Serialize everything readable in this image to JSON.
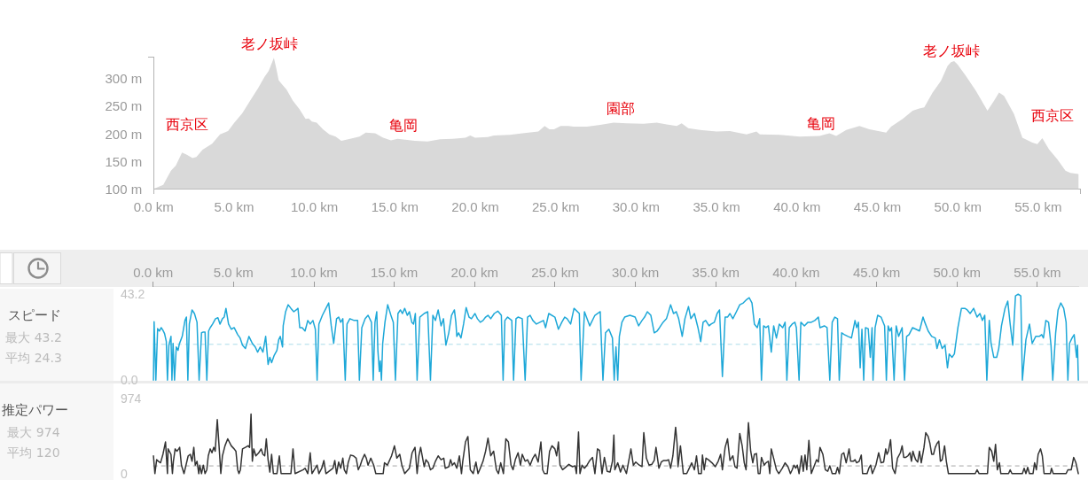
{
  "chart_data": [
    {
      "type": "area",
      "color": "#d9d9d9",
      "x": [
        0,
        0.6,
        1.08,
        1.38,
        1.77,
        2.07,
        2.42,
        2.66,
        3.05,
        3.64,
        4.13,
        4.63,
        5.02,
        5.51,
        6,
        6.5,
        6.89,
        7.15,
        7.28,
        7.48,
        7.62,
        7.78,
        8.01,
        8.27,
        8.66,
        9.06,
        9.45,
        9.65,
        9.84,
        10.14,
        10.53,
        10.93,
        11.32,
        11.67,
        12.1,
        12.8,
        13.19,
        13.78,
        14.27,
        14.76,
        15.16,
        15.65,
        16.24,
        17.03,
        17.81,
        18.6,
        19.39,
        19.69,
        19.98,
        20.77,
        21.16,
        22.15,
        22.93,
        23.92,
        24.31,
        24.61,
        24.9,
        25.3,
        25.79,
        26.12,
        26.94,
        27.77,
        28.6,
        29.42,
        30.45,
        31.28,
        31.9,
        32.52,
        32.83,
        33.24,
        33.97,
        35,
        35.83,
        36.86,
        37.48,
        37.69,
        38.93,
        40.17,
        41.4,
        42.02,
        42.44,
        43.06,
        43.88,
        44.5,
        45.54,
        45.85,
        46.57,
        47.19,
        47.6,
        47.91,
        48.43,
        48.95,
        49.36,
        49.57,
        49.77,
        49.98,
        50.5,
        51.12,
        51.84,
        52.25,
        52.56,
        52.87,
        53.49,
        54.01,
        54.63,
        54.94,
        55.25,
        55.66,
        56.18,
        56.69,
        57,
        57.5
      ],
      "values": [
        100,
        107,
        133,
        142,
        166,
        162,
        156,
        158,
        171,
        182,
        199,
        205,
        220,
        237,
        260,
        283,
        303,
        314,
        323,
        338,
        320,
        297,
        289,
        280,
        260,
        245,
        227,
        228,
        222,
        220,
        208,
        199,
        195,
        187,
        190,
        195,
        202,
        201,
        193,
        188,
        191,
        189,
        187,
        186,
        190,
        191,
        193,
        197,
        193,
        194,
        197,
        198,
        201,
        204,
        214,
        208,
        208,
        214,
        214,
        213,
        213,
        216,
        220,
        219,
        218,
        220,
        217,
        214,
        219,
        210,
        207,
        204,
        205,
        199,
        204,
        199,
        198,
        195,
        196,
        201,
        196,
        207,
        214,
        208,
        202,
        213,
        227,
        242,
        246,
        248,
        275,
        296,
        323,
        330,
        332,
        326,
        305,
        278,
        242,
        260,
        275,
        269,
        236,
        193,
        184,
        181,
        192,
        172,
        154,
        133,
        129,
        127
      ],
      "xlim": [
        0,
        57.6
      ],
      "ylim": [
        100,
        340
      ],
      "xticks": [
        {
          "value": 0,
          "label": "0.0 km"
        },
        {
          "value": 5,
          "label": "5.0 km"
        },
        {
          "value": 10,
          "label": "10.0 km"
        },
        {
          "value": 15,
          "label": "15.0 km"
        },
        {
          "value": 20,
          "label": "20.0 km"
        },
        {
          "value": 25,
          "label": "25.0 km"
        },
        {
          "value": 30,
          "label": "30.0 km"
        },
        {
          "value": 35,
          "label": "35.0 km"
        },
        {
          "value": 40,
          "label": "40.0 km"
        },
        {
          "value": 45,
          "label": "45.0 km"
        },
        {
          "value": 50,
          "label": "50.0 km"
        },
        {
          "value": 55,
          "label": "55.0 km"
        }
      ],
      "yticks": [
        {
          "value": 100,
          "label": "100 m"
        },
        {
          "value": 150,
          "label": "150 m"
        },
        {
          "value": 200,
          "label": "200 m"
        },
        {
          "value": 250,
          "label": "250 m"
        },
        {
          "value": 300,
          "label": "300 m"
        }
      ],
      "annotations": [
        "西京区",
        "老ノ坂峠",
        "亀岡",
        "園部",
        "亀岡",
        "老ノ坂峠",
        "西京区"
      ]
    },
    {
      "type": "line",
      "color": "#1ea8d8",
      "ylabel": "スピード",
      "annotations": [
        "最大 43.2",
        "平均 24.3"
      ],
      "x": [
        0.02,
        0.06,
        0.17,
        0.28,
        0.39,
        0.5,
        0.6,
        0.71,
        0.82,
        0.89,
        0.98,
        1.11,
        1.17,
        1.24,
        1.33,
        1.44,
        1.55,
        1.63,
        1.81,
        1.98,
        2.07,
        2.16,
        2.25,
        2.42,
        2.57,
        2.73,
        2.86,
        3.01,
        3.12,
        3.23,
        3.34,
        3.45,
        3.55,
        3.7,
        3.88,
        4.03,
        4.16,
        4.31,
        4.42,
        4.53,
        4.69,
        4.86,
        5.04,
        5.26,
        5.41,
        5.56,
        5.74,
        5.96,
        6.17,
        6.35,
        6.5,
        6.66,
        6.83,
        7,
        7.15,
        7.26,
        7.37,
        7.52,
        7.7,
        7.81,
        7.91,
        8.05,
        8.09,
        8.24,
        8.4,
        8.57,
        8.75,
        8.9,
        9.01,
        9.12,
        9.27,
        9.45,
        9.62,
        9.77,
        9.94,
        10.09,
        10.2,
        10.31,
        10.53,
        10.75,
        10.92,
        11.08,
        11.23,
        11.41,
        11.54,
        11.67,
        11.8,
        11.95,
        12.06,
        12.24,
        12.5,
        12.72,
        12.83,
        12.98,
        13.19,
        13.37,
        13.58,
        13.69,
        13.8,
        13.91,
        13.98,
        14.07,
        14.13,
        14.2,
        14.28,
        14.42,
        14.59,
        14.79,
        14.94,
        15.07,
        15.23,
        15.38,
        15.51,
        15.65,
        15.81,
        15.94,
        16.09,
        16.2,
        16.31,
        16.42,
        16.59,
        16.86,
        17.08,
        17.25,
        17.4,
        17.56,
        17.73,
        17.91,
        18.06,
        18.21,
        18.39,
        18.56,
        18.74,
        18.83,
        18.89,
        19,
        19.15,
        19.31,
        19.47,
        19.65,
        19.8,
        20.02,
        20.17,
        20.35,
        20.52,
        20.68,
        20.83,
        21,
        21.22,
        21.44,
        21.66,
        21.77,
        21.88,
        22.05,
        22.31,
        22.42,
        22.57,
        22.7,
        22.96,
        23.14,
        23.29,
        23.45,
        23.62,
        23.84,
        24.06,
        24.28,
        24.41,
        24.61,
        24.99,
        25.21,
        25.42,
        25.6,
        25.75,
        25.97,
        26.18,
        26.51,
        26.62,
        26.83,
        27.16,
        27.48,
        27.81,
        27.98,
        28.14,
        28.35,
        28.57,
        28.68,
        28.79,
        28.9,
        29,
        29.16,
        29.33,
        29.66,
        29.98,
        30.2,
        30.41,
        30.57,
        30.74,
        30.96,
        31.17,
        31.35,
        31.5,
        31.72,
        31.93,
        32.19,
        32.37,
        32.54,
        32.69,
        32.91,
        33.08,
        33.3,
        33.45,
        33.67,
        33.89,
        34.06,
        34.21,
        34.37,
        34.58,
        34.71,
        34.91,
        35.08,
        35.23,
        35.41,
        35.58,
        35.73,
        35.88,
        36.06,
        36.28,
        36.49,
        36.71,
        36.93,
        37.08,
        37.25,
        37.4,
        37.58,
        37.73,
        37.84,
        37.97,
        38.12,
        38.27,
        38.45,
        38.6,
        38.77,
        38.95,
        39.16,
        39.31,
        39.42,
        39.57,
        39.75,
        39.92,
        40.01,
        40.18,
        40.29,
        40.51,
        40.73,
        40.94,
        41.16,
        41.38,
        41.48,
        41.75,
        41.92,
        42.09,
        42.24,
        42.4,
        42.57,
        42.68,
        42.83,
        43,
        43.22,
        43.44,
        43.66,
        43.76,
        43.87,
        43.98,
        44.09,
        44.2,
        44.31,
        44.48,
        44.61,
        44.72,
        44.78,
        44.91,
        45.07,
        45.28,
        45.5,
        45.61,
        45.72,
        45.83,
        45.93,
        46.09,
        46.22,
        46.37,
        46.59,
        46.74,
        46.87,
        47.02,
        47.24,
        47.45,
        47.67,
        47.89,
        48,
        48.21,
        48.43,
        48.65,
        48.76,
        48.91,
        49.08,
        49.26,
        49.41,
        49.52,
        49.69,
        49.84,
        50.06,
        50.28,
        50.49,
        50.64,
        50.82,
        51.04,
        51.25,
        51.43,
        51.58,
        51.73,
        51.86,
        52.01,
        52.12,
        52.29,
        52.47,
        52.6,
        52.77,
        52.99,
        53.16,
        53.31,
        53.47,
        53.64,
        53.81,
        53.97,
        54.07,
        54.29,
        54.51,
        54.68,
        54.9,
        55.12,
        55.27,
        55.38,
        55.53,
        55.7,
        55.85,
        55.96,
        56.14,
        56.29,
        56.46,
        56.64,
        56.79,
        56.9,
        57,
        57.16,
        57.29,
        57.44,
        57.5,
        57.55
      ],
      "values": [
        0,
        29.4,
        0,
        25.9,
        24.7,
        26.4,
        25.2,
        23.4,
        19.4,
        0,
        17.6,
        22,
        0,
        18.5,
        0,
        16.7,
        15,
        18.2,
        22,
        30,
        31.7,
        0,
        28.2,
        35.3,
        33.5,
        29.1,
        0,
        23.8,
        24.2,
        24.2,
        0,
        24.7,
        26.4,
        28.2,
        30.9,
        31.4,
        28.2,
        30.9,
        31.7,
        36.1,
        28.2,
        25.6,
        26.4,
        22.9,
        21.2,
        17.6,
        15.9,
        22,
        18.5,
        16.7,
        14.1,
        16.7,
        14.1,
        22,
        7.9,
        11.5,
        8.8,
        12.3,
        15,
        20.3,
        22,
        16.7,
        27.3,
        34.4,
        37.9,
        36.1,
        34.4,
        35.3,
        36.1,
        26.4,
        26.4,
        24.7,
        30,
        28.2,
        30,
        25.6,
        0,
        28.2,
        32.6,
        36.1,
        38.8,
        27.3,
        18.5,
        30.9,
        31.7,
        29.1,
        30.9,
        0,
        28.2,
        30.9,
        30,
        30,
        0,
        26.4,
        30.9,
        32.6,
        29.1,
        0,
        29.1,
        34.4,
        15,
        4.4,
        9.7,
        0,
        18.5,
        29.1,
        37.9,
        32.6,
        29.1,
        0,
        33.5,
        35.3,
        33.5,
        36.1,
        32.6,
        34.4,
        29.1,
        28.2,
        33.5,
        0,
        31.7,
        33.5,
        34.4,
        0,
        32.6,
        30,
        35.3,
        27.3,
        30.9,
        17.6,
        23.8,
        32.6,
        35.3,
        29.1,
        22,
        23.8,
        21.2,
        28.2,
        36.5,
        31.7,
        30.9,
        33.5,
        30.9,
        29.1,
        30,
        31.7,
        32.6,
        30.9,
        33.5,
        34.7,
        32.6,
        0,
        30,
        31.7,
        30,
        0,
        30.9,
        31.7,
        30.9,
        0,
        31.7,
        32.6,
        30,
        28.2,
        29.1,
        30,
        26.4,
        33.5,
        31.7,
        25.6,
        29.1,
        31.7,
        30.9,
        28.2,
        36.1,
        33.5,
        0,
        34.4,
        27.3,
        32.6,
        34.4,
        0,
        23.8,
        25.6,
        21.2,
        0,
        16.7,
        0,
        22,
        29.1,
        31.7,
        32.6,
        31.7,
        27.3,
        30,
        31.7,
        34.4,
        32.6,
        23.8,
        24.7,
        26.4,
        29.1,
        30.9,
        37.9,
        33.5,
        34.4,
        30.9,
        22,
        30.9,
        37,
        30.9,
        33.5,
        26.4,
        19.4,
        29.1,
        30,
        27.3,
        28.2,
        29.1,
        33.5,
        35.3,
        1.8,
        31.7,
        31.7,
        33.5,
        30.9,
        34.4,
        37.9,
        38.8,
        40.6,
        41.4,
        38.8,
        28.2,
        26.4,
        30.9,
        0,
        27.3,
        26.4,
        27.3,
        14.1,
        27.3,
        21.2,
        28.2,
        26.4,
        29.1,
        0,
        26.4,
        28.2,
        29.1,
        26.4,
        0,
        29.1,
        27.3,
        29.1,
        29.1,
        30,
        31.7,
        26.4,
        27.3,
        26.4,
        0,
        29.1,
        31.7,
        30.9,
        0,
        23.8,
        22.9,
        22,
        21.2,
        30,
        26.4,
        29.1,
        6.2,
        25.6,
        0,
        26.4,
        25.9,
        11.5,
        26.4,
        0,
        26.4,
        32.6,
        31.7,
        27.3,
        0,
        27.3,
        24.7,
        26.4,
        0,
        27.3,
        22,
        26.4,
        0,
        22,
        22.9,
        26.4,
        25.6,
        24.7,
        31.7,
        29.1,
        24.7,
        22,
        21.2,
        15.9,
        20.3,
        15.9,
        17.6,
        6.2,
        13.2,
        11.5,
        13.2,
        26.4,
        36.1,
        36.1,
        35.3,
        33.5,
        36.1,
        31.7,
        33.5,
        30,
        32.6,
        0,
        30,
        18.5,
        11.5,
        11.5,
        15.9,
        27.3,
        36.1,
        39.7,
        28.2,
        17.6,
        42.3,
        43.2,
        42.3,
        0,
        20.3,
        28.2,
        18.5,
        22,
        22,
        22.9,
        21.2,
        30,
        29.1,
        17.6,
        0,
        23.8,
        35.3,
        38.8,
        36.1,
        29.1,
        0,
        18.5,
        21.2,
        22.9,
        11.5,
        17.6,
        0
      ],
      "xlim": [
        0,
        57.6
      ],
      "ylim": [
        0,
        43.2
      ],
      "xticks": [
        {
          "value": 0,
          "label": "0.0 km"
        },
        {
          "value": 5,
          "label": "5.0 km"
        },
        {
          "value": 10,
          "label": "10.0 km"
        },
        {
          "value": 15,
          "label": "15.0 km"
        },
        {
          "value": 20,
          "label": "20.0 km"
        },
        {
          "value": 25,
          "label": "25.0 km"
        },
        {
          "value": 30,
          "label": "30.0 km"
        },
        {
          "value": 35,
          "label": "35.0 km"
        },
        {
          "value": 40,
          "label": "40.0 km"
        },
        {
          "value": 45,
          "label": "45.0 km"
        },
        {
          "value": 50,
          "label": "50.0 km"
        },
        {
          "value": 55,
          "label": "55.0 km"
        }
      ],
      "yticks": [
        {
          "value": 0,
          "label": "0.0"
        },
        43.2
      ],
      "ref_lines": [
        {
          "axis": "y",
          "value": 18,
          "color": "#a9dbe9",
          "line_style": "dashed"
        }
      ]
    },
    {
      "type": "line",
      "color": "#333333",
      "ylabel": "推定パワー",
      "annotations": [
        "最大 974",
        "平均 120"
      ],
      "x": [
        0.02,
        0.11,
        0.22,
        0.33,
        0.46,
        0.61,
        0.77,
        0.89,
        0.93,
        1.11,
        1.2,
        1.26,
        1.37,
        1.48,
        1.59,
        1.65,
        1.76,
        1.92,
        2.18,
        2.31,
        2.42,
        2.53,
        2.62,
        2.73,
        2.84,
        2.9,
        3.01,
        3.12,
        3.23,
        3.34,
        3.43,
        3.55,
        3.66,
        3.77,
        3.86,
        3.99,
        4.1,
        4.21,
        4.31,
        4.47,
        4.64,
        4.86,
        5.04,
        5.15,
        5.26,
        5.34,
        5.43,
        5.56,
        5.74,
        5.91,
        6,
        6.09,
        6.17,
        6.26,
        6.39,
        6.57,
        6.72,
        6.83,
        6.94,
        7.04,
        7.15,
        7.26,
        7.37,
        7.48,
        7.7,
        7.85,
        7.96,
        8.57,
        8.7,
        8.83,
        9.34,
        9.45,
        9.62,
        9.77,
        9.88,
        10.2,
        10.31,
        10.49,
        10.62,
        10.75,
        11.19,
        11.3,
        11.41,
        11.54,
        11.67,
        11.8,
        11.89,
        12.02,
        12.13,
        12.28,
        12.46,
        12.63,
        12.76,
        12.89,
        13,
        13.15,
        13.26,
        13.37,
        13.54,
        13.72,
        13.85,
        14.31,
        14.39,
        14.57,
        14.68,
        14.83,
        15.01,
        15.16,
        15.34,
        15.47,
        15.65,
        15.94,
        16.11,
        16.29,
        16.42,
        16.53,
        16.64,
        16.86,
        16.97,
        17.12,
        17.25,
        17.4,
        17.56,
        17.73,
        17.91,
        18.08,
        18.17,
        18.39,
        18.5,
        18.61,
        18.74,
        18.89,
        19.05,
        19.18,
        19.26,
        19.43,
        19.58,
        19.73,
        19.91,
        20.08,
        20.21,
        20.35,
        20.52,
        20.68,
        20.83,
        21,
        21.18,
        21.35,
        21.48,
        21.62,
        21.79,
        21.94,
        22.1,
        22.26,
        22.39,
        22.53,
        22.7,
        22.85,
        22.96,
        23.14,
        23.29,
        23.45,
        23.62,
        23.77,
        23.95,
        24.12,
        24.23,
        24.34,
        24.51,
        24.66,
        24.81,
        24.99,
        25.1,
        25.21,
        25.31,
        25.47,
        25.64,
        25.86,
        26.07,
        26.25,
        26.33,
        26.46,
        26.55,
        26.68,
        26.83,
        26.99,
        27.16,
        27.33,
        27.48,
        27.64,
        27.77,
        27.92,
        28.07,
        28.24,
        28.42,
        28.57,
        28.66,
        28.72,
        28.9,
        29.07,
        29.22,
        29.44,
        29.72,
        29.87,
        30.02,
        30.24,
        30.41,
        30.52,
        30.68,
        30.85,
        31.02,
        31.17,
        31.28,
        31.46,
        31.61,
        31.76,
        31.93,
        32.06,
        32.19,
        32.33,
        32.5,
        32.59,
        32.65,
        32.8,
        32.98,
        33.19,
        33.35,
        33.5,
        33.67,
        33.8,
        33.93,
        34.1,
        34.17,
        34.28,
        34.39,
        34.54,
        34.76,
        34.97,
        35.15,
        35.3,
        35.41,
        35.58,
        35.73,
        35.88,
        36.06,
        36.19,
        36.32,
        36.49,
        36.64,
        36.77,
        36.88,
        37.03,
        37.17,
        37.3,
        37.4,
        37.53,
        37.64,
        37.75,
        37.84,
        38.01,
        38.12,
        38.27,
        38.36,
        38.45,
        38.62,
        38.77,
        38.92,
        39.14,
        39.31,
        39.49,
        39.64,
        39.75,
        39.86,
        39.97,
        40.07,
        40.18,
        40.33,
        40.44,
        40.55,
        40.66,
        40.79,
        40.94,
        41.27,
        41.38,
        41.48,
        41.66,
        41.81,
        41.96,
        42.09,
        42.24,
        42.46,
        42.57,
        42.68,
        42.83,
        42.96,
        43.11,
        43.29,
        43.39,
        43.55,
        43.66,
        43.76,
        43.92,
        44.05,
        44.13,
        44.41,
        44.52,
        44.63,
        44.74,
        44.96,
        45.13,
        45.28,
        45.44,
        45.57,
        45.65,
        45.74,
        45.87,
        46,
        46.15,
        46.3,
        46.48,
        46.59,
        46.69,
        46.82,
        46.95,
        47.08,
        47.17,
        47.26,
        47.35,
        47.43,
        47.56,
        47.67,
        47.78,
        47.95,
        48.06,
        48.21,
        48.32,
        48.43,
        48.54,
        48.65,
        48.76,
        48.87,
        48.97,
        49.08,
        49.23,
        49.34,
        49.47,
        49.78,
        51.14,
        51.25,
        51.38,
        51.9,
        52.01,
        52.16,
        52.29,
        52.4,
        52.51,
        52.64,
        52.73,
        53.21,
        53.31,
        53.42,
        54.07,
        54.18,
        54.29,
        54.4,
        54.51,
        54.73,
        54.83,
        54.94,
        55.05,
        55.2,
        55.31,
        55.42,
        55.81,
        55.88,
        55.99,
        56.79,
        56.9,
        57.11,
        57.26,
        57.4,
        57.55
      ],
      "values": [
        230,
        0,
        180,
        160,
        140,
        250,
        410,
        0,
        320,
        250,
        0,
        160,
        320,
        290,
        320,
        340,
        110,
        0,
        230,
        250,
        160,
        340,
        110,
        160,
        0,
        110,
        0,
        110,
        0,
        50,
        230,
        320,
        270,
        340,
        290,
        700,
        360,
        0,
        230,
        360,
        450,
        360,
        320,
        290,
        50,
        0,
        50,
        320,
        340,
        360,
        340,
        770,
        160,
        320,
        230,
        270,
        320,
        250,
        230,
        450,
        180,
        20,
        250,
        0,
        0,
        230,
        0,
        0,
        320,
        0,
        50,
        70,
        0,
        270,
        0,
        110,
        0,
        70,
        170,
        0,
        70,
        170,
        0,
        150,
        70,
        200,
        50,
        0,
        140,
        240,
        230,
        200,
        50,
        110,
        180,
        250,
        200,
        110,
        200,
        110,
        0,
        0,
        140,
        110,
        160,
        230,
        360,
        200,
        250,
        110,
        0,
        70,
        270,
        340,
        0,
        230,
        340,
        90,
        180,
        140,
        50,
        70,
        160,
        230,
        180,
        200,
        70,
        90,
        180,
        110,
        140,
        70,
        230,
        0,
        160,
        410,
        480,
        50,
        0,
        150,
        0,
        70,
        160,
        290,
        460,
        230,
        290,
        50,
        0,
        140,
        0,
        450,
        410,
        110,
        50,
        180,
        270,
        110,
        250,
        160,
        180,
        110,
        200,
        250,
        150,
        410,
        50,
        0,
        0,
        290,
        360,
        320,
        230,
        410,
        110,
        50,
        80,
        120,
        90,
        100,
        0,
        540,
        0,
        110,
        70,
        110,
        170,
        210,
        0,
        320,
        300,
        0,
        210,
        30,
        20,
        160,
        500,
        50,
        140,
        20,
        110,
        0,
        320,
        110,
        150,
        110,
        90,
        530,
        200,
        110,
        120,
        170,
        340,
        70,
        150,
        170,
        170,
        180,
        70,
        230,
        600,
        390,
        90,
        360,
        0,
        0,
        70,
        140,
        50,
        230,
        0,
        0,
        240,
        50,
        200,
        180,
        140,
        90,
        160,
        250,
        50,
        340,
        450,
        170,
        230,
        90,
        70,
        520,
        360,
        140,
        50,
        660,
        290,
        140,
        250,
        260,
        0,
        0,
        210,
        110,
        140,
        160,
        0,
        320,
        180,
        50,
        0,
        70,
        140,
        90,
        0,
        50,
        110,
        70,
        110,
        0,
        230,
        30,
        240,
        50,
        430,
        0,
        180,
        150,
        340,
        250,
        50,
        30,
        100,
        0,
        0,
        80,
        0,
        250,
        270,
        140,
        320,
        160,
        160,
        180,
        140,
        160,
        240,
        0,
        0,
        70,
        110,
        0,
        110,
        270,
        140,
        150,
        320,
        250,
        290,
        440,
        70,
        0,
        200,
        270,
        360,
        210,
        210,
        230,
        270,
        160,
        290,
        230,
        180,
        150,
        290,
        140,
        340,
        530,
        480,
        390,
        250,
        250,
        340,
        390,
        420,
        160,
        180,
        360,
        160,
        0,
        0,
        0,
        50,
        0,
        0,
        340,
        290,
        160,
        380,
        50,
        140,
        0,
        0,
        50,
        0,
        0,
        70,
        0,
        80,
        0,
        0,
        140,
        50,
        250,
        320,
        230,
        0,
        0,
        70,
        0,
        0,
        50,
        50,
        210,
        140,
        0
      ],
      "xlim": [
        0,
        57.6
      ],
      "ylim": [
        0,
        974
      ],
      "yticks": [
        0,
        974
      ],
      "tick_labels": "y",
      "ref_lines": [
        {
          "axis": "y",
          "value": 100,
          "color": "#a6a6a6",
          "line_style": "dashed"
        }
      ]
    }
  ]
}
